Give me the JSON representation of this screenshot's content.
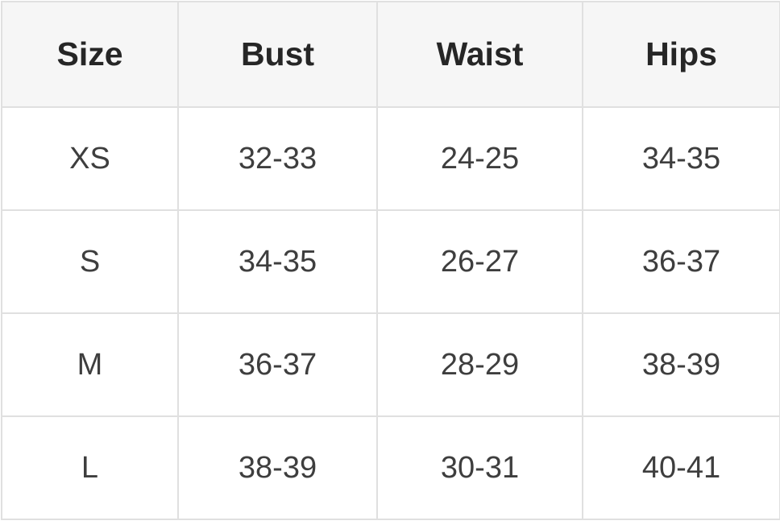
{
  "table": {
    "headers": [
      "Size",
      "Bust",
      "Waist",
      "Hips"
    ],
    "rows": [
      [
        "XS",
        "32-33",
        "24-25",
        "34-35"
      ],
      [
        "S",
        "34-35",
        "26-27",
        "36-37"
      ],
      [
        "M",
        "36-37",
        "28-29",
        "38-39"
      ],
      [
        "L",
        "38-39",
        "30-31",
        "40-41"
      ]
    ]
  },
  "colors": {
    "header_background": "#f6f6f6",
    "border": "#e0e0e0",
    "header_text": "#262626",
    "cell_text": "#3e3e3e"
  }
}
